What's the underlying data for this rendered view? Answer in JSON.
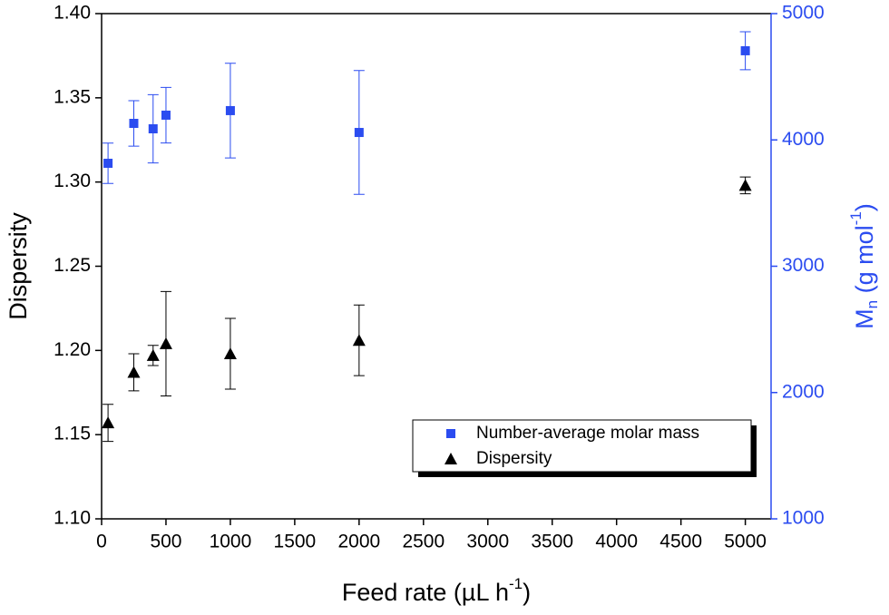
{
  "chart_data": {
    "type": "scatter",
    "xlabel": [
      "Feed rate (µL h",
      "-1",
      ")"
    ],
    "ylabel": "Dispersity",
    "y2label": [
      "M",
      "n",
      " (g mol",
      "-1",
      ")"
    ],
    "x": [
      50,
      250,
      400,
      500,
      1000,
      2000,
      5000
    ],
    "xlim": [
      0,
      5200
    ],
    "xticks": [
      0,
      500,
      1000,
      1500,
      2000,
      2500,
      3000,
      3500,
      4000,
      4500,
      5000
    ],
    "ylim": [
      1.1,
      1.4
    ],
    "yticks": [
      {
        "value": 1.1,
        "label": "1.10"
      },
      {
        "value": 1.15,
        "label": "1.15"
      },
      {
        "value": 1.2,
        "label": "1.20"
      },
      {
        "value": 1.25,
        "label": "1.25"
      },
      {
        "value": 1.3,
        "label": "1.30"
      },
      {
        "value": 1.35,
        "label": "1.35"
      },
      {
        "value": 1.4,
        "label": "1.40"
      }
    ],
    "y2lim": [
      1000,
      5000
    ],
    "y2ticks": [
      1000,
      2000,
      3000,
      4000,
      5000
    ],
    "y2color": "#2b4cf0",
    "legend": "bottom-right",
    "series": [
      {
        "name": "Number-average molar mass",
        "color": "#2b4cf0",
        "marker": "square",
        "axis": "y2",
        "values": [
          3815,
          4131,
          4088,
          4196,
          4232,
          4059,
          4706
        ],
        "errors": [
          160,
          180,
          270,
          220,
          375,
          490,
          150
        ]
      },
      {
        "name": "Dispersity",
        "color": "#000000",
        "marker": "triangle",
        "values": [
          1.157,
          1.187,
          1.197,
          1.204,
          1.198,
          1.206,
          1.298
        ],
        "errors": [
          0.011,
          0.011,
          0.006,
          0.031,
          0.021,
          0.021,
          0.005
        ]
      }
    ]
  }
}
